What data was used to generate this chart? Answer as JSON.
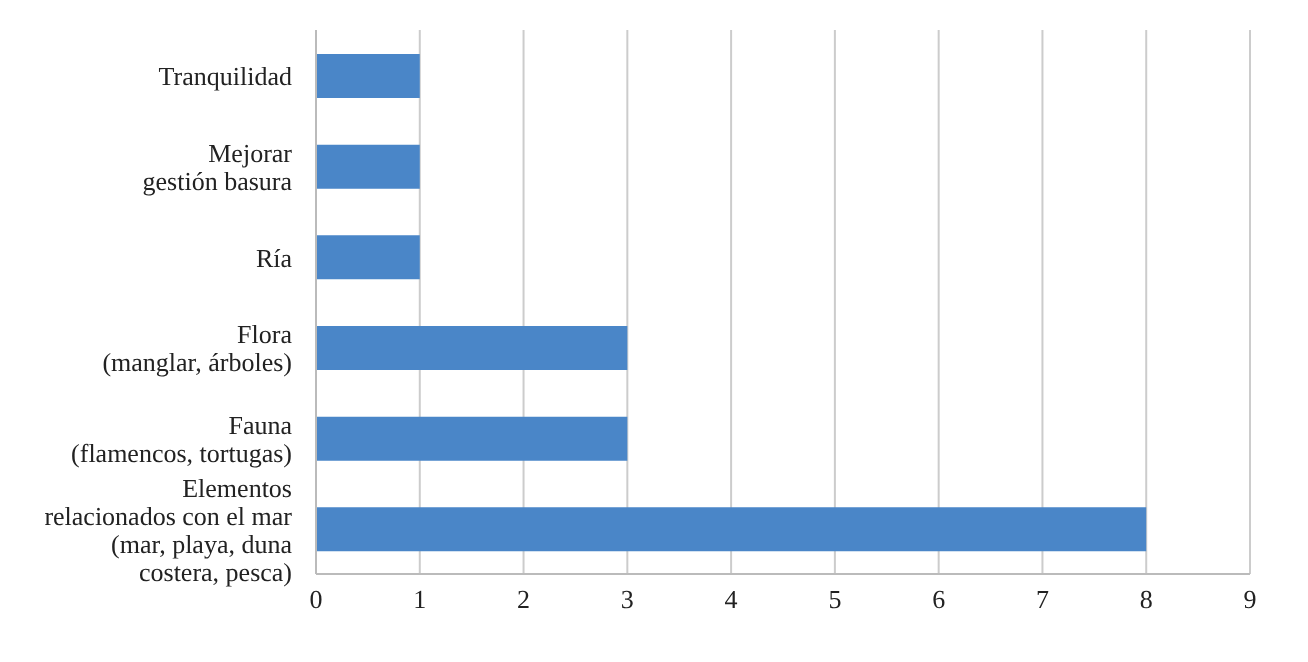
{
  "chart_data": {
    "type": "bar",
    "orientation": "horizontal",
    "categories": [
      "Tranquilidad",
      "Mejorar\ngestión basura",
      "Ría",
      "Flora\n(manglar, árboles)",
      "Fauna\n(flamencos, tortugas)",
      "Elementos\nrelacionados con el mar\n(mar, playa, duna\ncostera, pesca)"
    ],
    "values": [
      1,
      1,
      1,
      3,
      3,
      8
    ],
    "color": "#4a86c8",
    "xlim": [
      0,
      9
    ],
    "xticks": [
      0,
      1,
      2,
      3,
      4,
      5,
      6,
      7,
      8,
      9
    ],
    "grid": "x"
  }
}
